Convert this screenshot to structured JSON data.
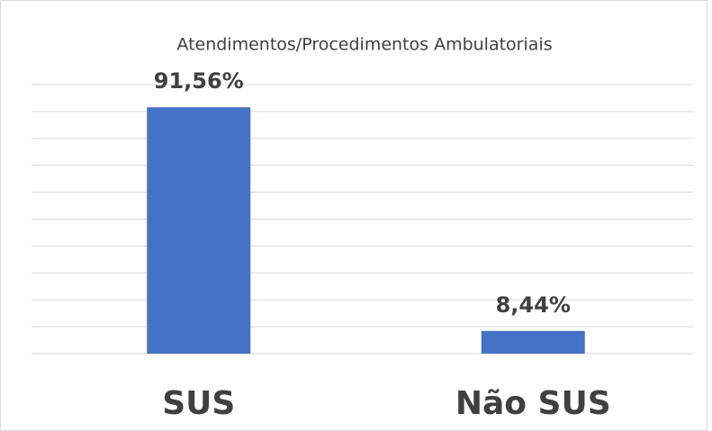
{
  "chart_data": {
    "type": "bar",
    "title": "Atendimentos/Procedimentos  Ambulatoriais",
    "categories": [
      "SUS",
      "Não SUS"
    ],
    "values": [
      91.56,
      8.44
    ],
    "value_labels": [
      "91,56%",
      "8,44%"
    ],
    "color": "#4472c4",
    "ylim": [
      0,
      100
    ],
    "yticks": [
      0,
      10,
      20,
      30,
      40,
      50,
      60,
      70,
      80,
      90,
      100
    ],
    "grid": true
  }
}
